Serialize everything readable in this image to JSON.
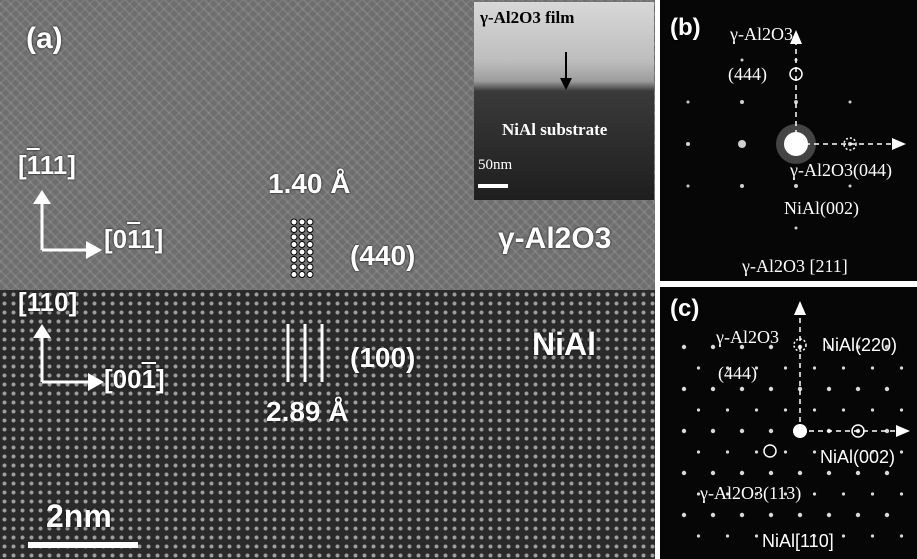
{
  "panel_a": {
    "label": "(a)",
    "inset": {
      "film_label": "γ-Al2O3 film",
      "substrate_label": "NiAl substrate",
      "scale_label": "50nm"
    },
    "dir_upper_v_pre": "[",
    "dir_upper_v_bar": "1",
    "dir_upper_v_post": "11]",
    "dir_upper_h_pre": "[0",
    "dir_upper_h_bar": "1",
    "dir_upper_h_post": "1]",
    "dir_lower_v": "[110]",
    "dir_lower_h_pre": "[00",
    "dir_lower_h_bar": "1",
    "dir_lower_h_post": "]",
    "d_upper": "1.40 Å",
    "plane_upper": "(440)",
    "phase_upper": "γ-Al2O3",
    "plane_lower": "(100)",
    "d_lower": "2.89 Å",
    "phase_lower": "NiAl",
    "scale_label": "2nm"
  },
  "panel_b": {
    "label": "(b)",
    "top_phase": "γ-Al2O3",
    "top_hkl": "(444)",
    "right_spot": "γ-Al2O3(044)",
    "nial_spot": "NiAl(002)",
    "zone": "γ-Al2O3 [211]"
  },
  "panel_c": {
    "label": "(c)",
    "top_phase": "γ-Al2O3",
    "top_hkl": "(444)",
    "top_nial": "NiAl(220)",
    "right_spot": "NiAl(002)",
    "bottom_spot": "γ-Al2O3(113)",
    "zone": "NiAl[110]"
  }
}
